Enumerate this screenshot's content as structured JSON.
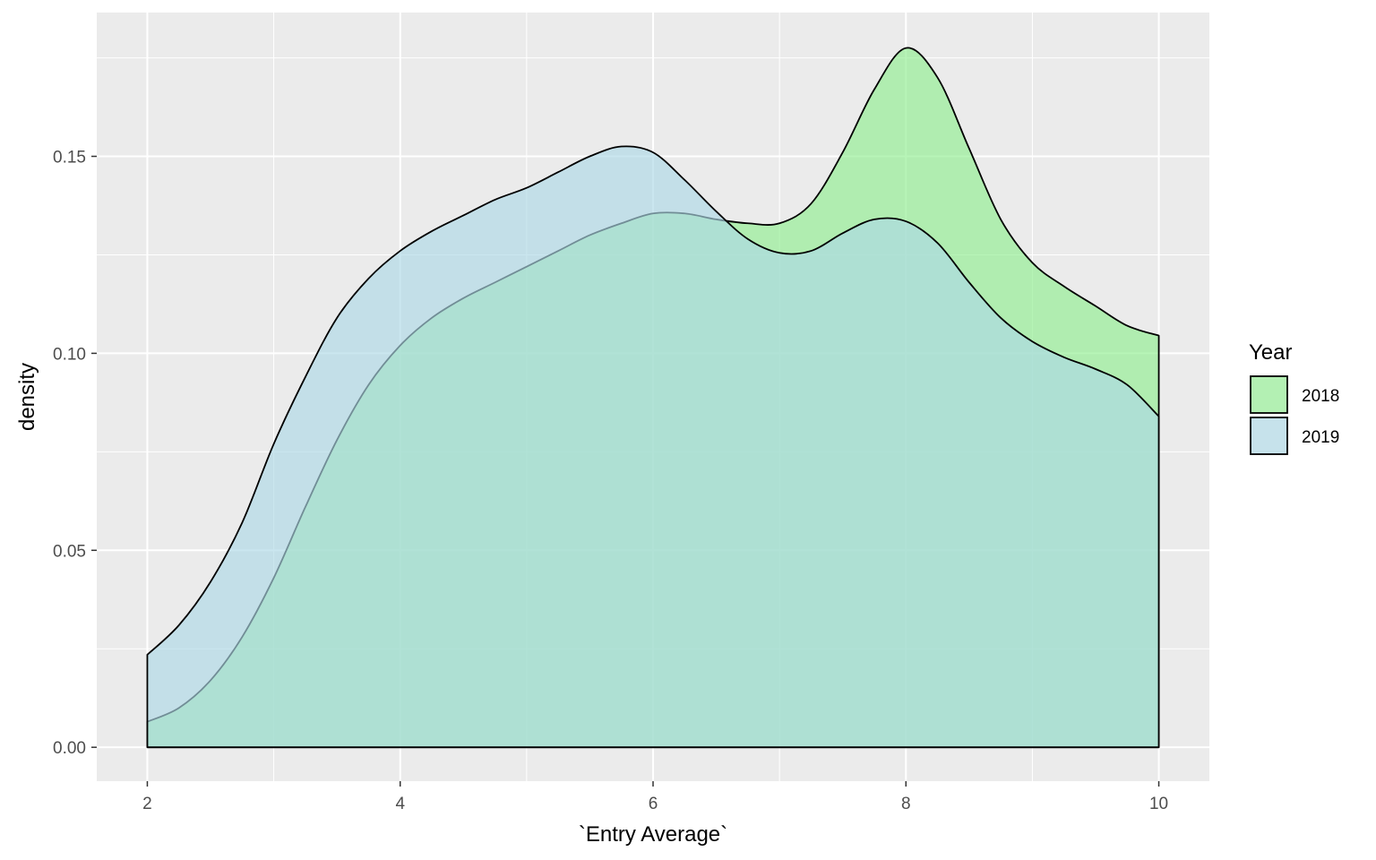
{
  "chart_data": {
    "type": "area",
    "title": "",
    "xlabel": "`Entry Average`",
    "ylabel": "density",
    "xlim": [
      1.6,
      10.4
    ],
    "ylim": [
      -0.0086,
      0.1865
    ],
    "x_ticks": [
      2,
      4,
      6,
      8,
      10
    ],
    "x_tick_labels": [
      "2",
      "4",
      "6",
      "8",
      "10"
    ],
    "y_ticks": [
      0.0,
      0.05,
      0.1,
      0.15
    ],
    "y_tick_labels": [
      "0.00",
      "0.05",
      "0.10",
      "0.15"
    ],
    "grid": true,
    "legend": {
      "title": "Year",
      "position": "right"
    },
    "x": [
      2.0,
      2.25,
      2.5,
      2.75,
      3.0,
      3.25,
      3.5,
      3.75,
      4.0,
      4.25,
      4.5,
      4.75,
      5.0,
      5.25,
      5.5,
      5.75,
      6.0,
      6.25,
      6.5,
      6.75,
      7.0,
      7.25,
      7.5,
      7.75,
      8.0,
      8.25,
      8.5,
      8.75,
      9.0,
      9.25,
      9.5,
      9.75,
      10.0
    ],
    "series": [
      {
        "name": "2018",
        "color": "#90EE90",
        "values": [
          0.0065,
          0.01,
          0.017,
          0.028,
          0.043,
          0.061,
          0.078,
          0.092,
          0.102,
          0.109,
          0.114,
          0.118,
          0.122,
          0.126,
          0.13,
          0.133,
          0.1355,
          0.1355,
          0.134,
          0.133,
          0.133,
          0.138,
          0.151,
          0.167,
          0.1775,
          0.17,
          0.152,
          0.134,
          0.123,
          0.117,
          0.112,
          0.107,
          0.1045
        ]
      },
      {
        "name": "2019",
        "color": "#ADD8E6",
        "values": [
          0.0235,
          0.031,
          0.042,
          0.057,
          0.077,
          0.094,
          0.109,
          0.119,
          0.126,
          0.131,
          0.135,
          0.139,
          0.142,
          0.146,
          0.15,
          0.1525,
          0.151,
          0.144,
          0.136,
          0.129,
          0.1255,
          0.126,
          0.1305,
          0.134,
          0.1335,
          0.128,
          0.118,
          0.109,
          0.103,
          0.099,
          0.096,
          0.092,
          0.084
        ]
      }
    ],
    "fill_opacity": 0.65,
    "panel_background": "#EBEBEB",
    "grid_color": "#FFFFFF"
  }
}
